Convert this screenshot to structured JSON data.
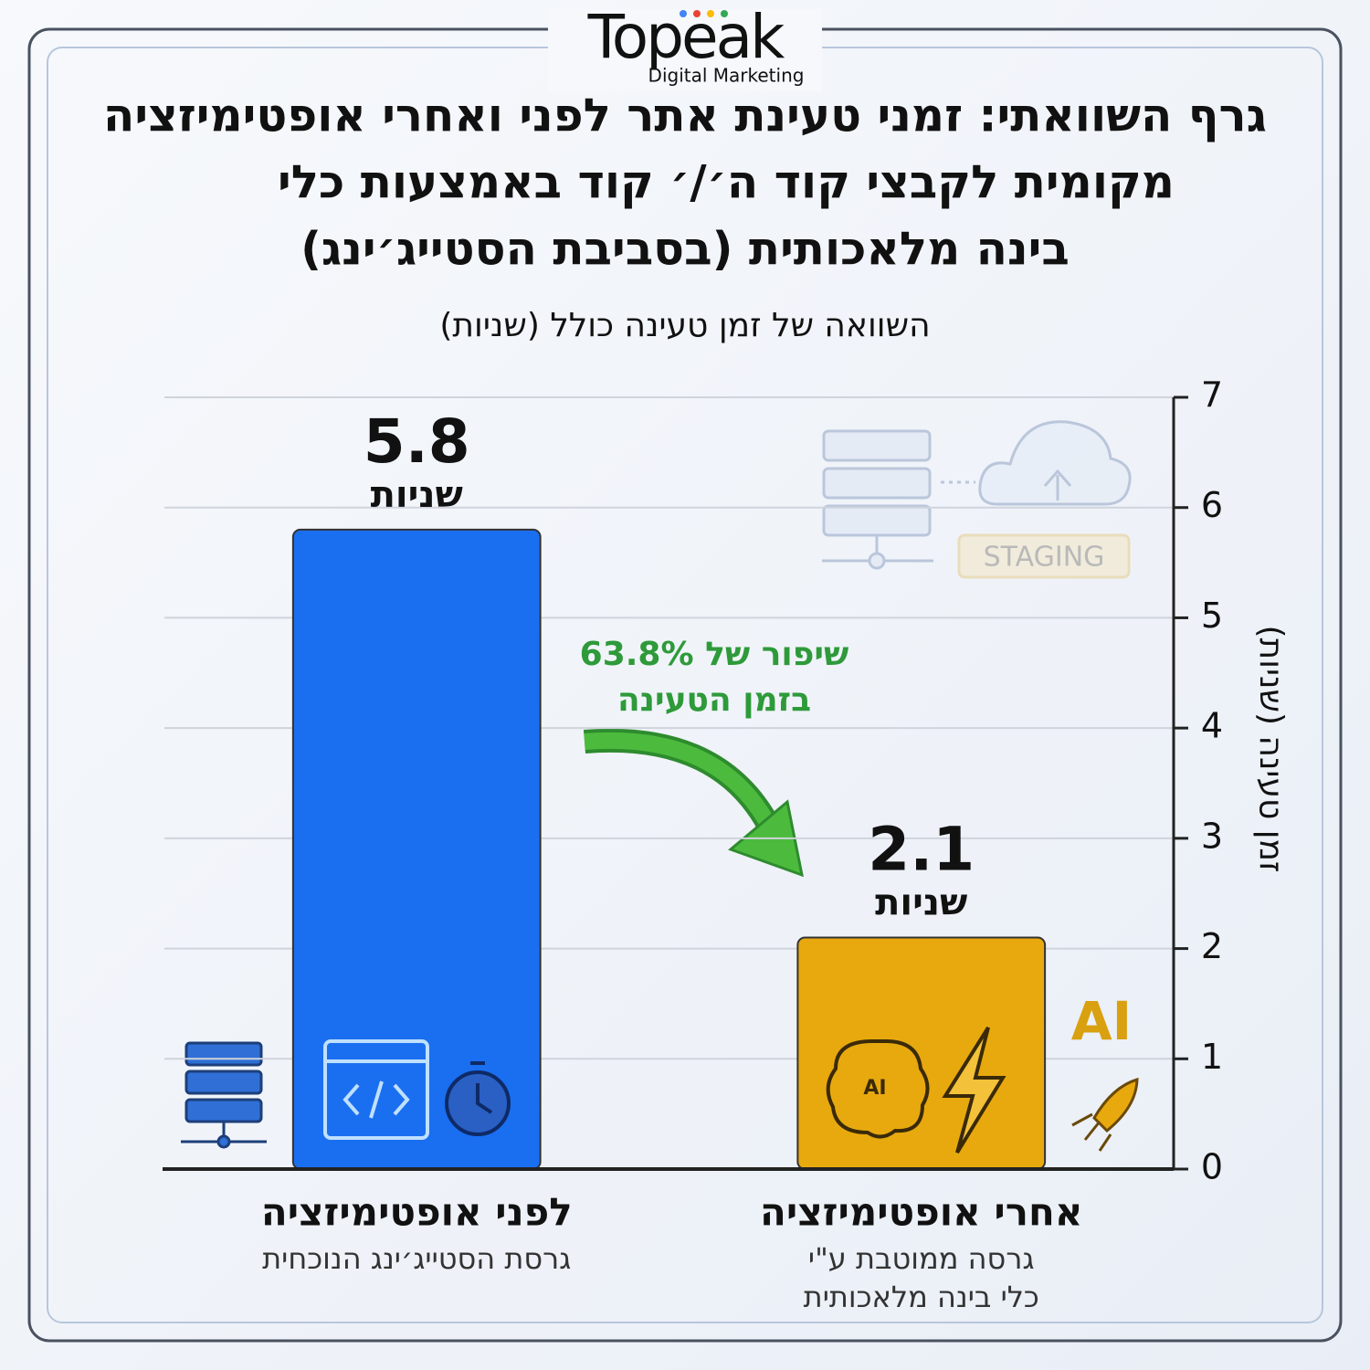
{
  "brand": {
    "name": "Topeak",
    "tagline": "Digital Marketing"
  },
  "chart_data": {
    "type": "bar",
    "title_lines": [
      "גרף השוואתי: זמני טעינת אתר לפני ואחרי אופטימיזציה",
      "מקומית לקבצי קוד ה׳/׳ קוד באמצעות כלי",
      "בינה מלאכותית (בסביבת הסטייג׳ינג)"
    ],
    "subtitle": "השוואה של זמן טעינה כולל (שניות)",
    "y_axis_label": "זמן טעינה (שניות)",
    "categories": [
      "לפני אופטימיזציה",
      "אחרי אופטימיזציה"
    ],
    "category_notes": [
      [
        "גרסת הסטייג׳ינג הנוכחית"
      ],
      [
        "גרסה ממוטבת ע\"י",
        "כלי בינה מלאכותית"
      ]
    ],
    "values": [
      5.8,
      2.1
    ],
    "value_unit": "שניות",
    "colors": [
      "#1a6ff0",
      "#e8a90e"
    ],
    "ylim": [
      0,
      7
    ],
    "yticks": [
      0,
      1,
      2,
      3,
      4,
      5,
      6,
      7
    ],
    "grid": true,
    "annotation": [
      "שיפור של 63.8%",
      "בזמן הטעינה"
    ],
    "icon_texts": {
      "staging": "STAGING",
      "ai_badge": "AI",
      "brain": "AI"
    }
  }
}
